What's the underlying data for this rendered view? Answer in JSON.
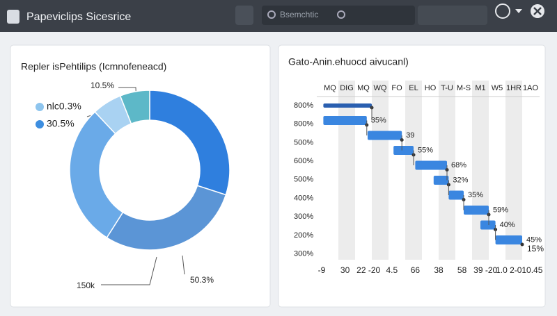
{
  "header": {
    "title": "Papeviclips Sicesrice",
    "search": "Bsemchtic"
  },
  "chart_data": [
    {
      "type": "pie",
      "donut": true,
      "title": "Repler isPehtilips (Icmnofeneacd)",
      "values": [
        30,
        29,
        29,
        6,
        6
      ],
      "colors": [
        "#2f7fde",
        "#5b95d6",
        "#6aaae8",
        "#a9d2f2",
        "#5db8c8"
      ],
      "legend": [
        {
          "name": "nlc0.3%",
          "color": "#8ec5ee"
        },
        {
          "name": "30.5%",
          "color": "#3d8ee0"
        }
      ],
      "annotations": [
        "10.5%",
        "50.3%",
        "150k"
      ]
    },
    {
      "type": "gantt",
      "title": "Gato-Anin.ehuocd aivucanl)",
      "columns": [
        "MQ",
        "DIG",
        "MQ",
        "WQ",
        "FO",
        "EL",
        "HO",
        "T-U",
        "M-S",
        "M1",
        "W5",
        "1HR",
        "1AO"
      ],
      "row_labels": [
        "800%",
        "800%",
        "500%",
        "600%",
        "500%",
        "400%",
        "300%",
        "200%",
        "300%"
      ],
      "x_labels": [
        "-9",
        "30",
        "22 -20",
        "4.5",
        "66",
        "38",
        "58",
        "39 -20",
        "1.0 2-0",
        "10.45"
      ],
      "xlim": [
        0,
        13
      ],
      "color": "#3a86e0",
      "tasks": [
        {
          "start": 0.1,
          "end": 3,
          "color": "#2a5fb0"
        },
        {
          "start": 0.1,
          "end": 2.7,
          "label": "35%"
        },
        {
          "start": 2.75,
          "end": 4.8,
          "label": "39"
        },
        {
          "start": 4.3,
          "end": 5.5,
          "label": "55%"
        },
        {
          "start": 5.6,
          "end": 7.5,
          "label": "68%"
        },
        {
          "start": 6.7,
          "end": 7.6,
          "label": "32%"
        },
        {
          "start": 7.6,
          "end": 8.5,
          "label": "35%"
        },
        {
          "start": 8.5,
          "end": 10,
          "label": "59%"
        },
        {
          "start": 9.5,
          "end": 10.4,
          "label": "40%"
        },
        {
          "start": 10.4,
          "end": 12,
          "label": "45%"
        }
      ],
      "annotations": [
        "15%"
      ]
    }
  ]
}
